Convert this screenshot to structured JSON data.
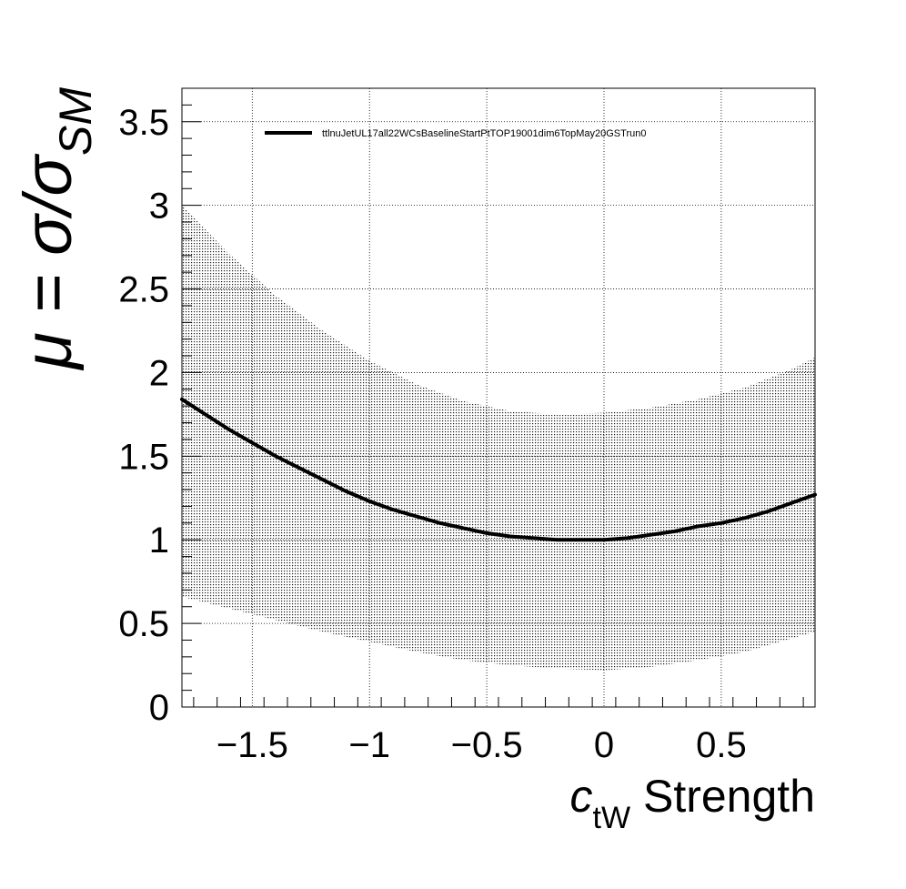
{
  "chart_data": {
    "type": "line",
    "title": "",
    "xlabel": {
      "symbol": "c",
      "subscript": "tW",
      "suffix": " Strength"
    },
    "ylabel": {
      "lhs": "μ = σ/σ",
      "subscript": "SM"
    },
    "xlim": [
      -1.8,
      0.9
    ],
    "ylim": [
      0,
      3.7
    ],
    "x_ticks": [
      -1.5,
      -1,
      -0.5,
      0,
      0.5
    ],
    "x_tick_labels": [
      "−1.5",
      "−1",
      "−0.5",
      "0",
      "0.5"
    ],
    "y_ticks": [
      0,
      0.5,
      1,
      1.5,
      2,
      2.5,
      3,
      3.5
    ],
    "y_tick_labels": [
      "0",
      "0.5",
      "1",
      "1.5",
      "2",
      "2.5",
      "3",
      "3.5"
    ],
    "grid": true,
    "legend_position": "top",
    "series": [
      {
        "name": "ttlnuJetUL17all22WCsBaselineStartPtTOP19001dim6TopMay20GSTrun0",
        "color": "#000000",
        "x": [
          -1.8,
          -1.7,
          -1.6,
          -1.5,
          -1.4,
          -1.3,
          -1.2,
          -1.1,
          -1.0,
          -0.9,
          -0.8,
          -0.7,
          -0.6,
          -0.5,
          -0.4,
          -0.3,
          -0.2,
          -0.1,
          0.0,
          0.1,
          0.2,
          0.3,
          0.4,
          0.5,
          0.6,
          0.7,
          0.8,
          0.9
        ],
        "y": [
          1.84,
          1.75,
          1.66,
          1.58,
          1.5,
          1.43,
          1.36,
          1.29,
          1.23,
          1.18,
          1.14,
          1.1,
          1.07,
          1.04,
          1.02,
          1.01,
          1.0,
          1.0,
          1.0,
          1.01,
          1.03,
          1.05,
          1.08,
          1.1,
          1.13,
          1.17,
          1.22,
          1.27
        ],
        "band": {
          "x": [
            -1.8,
            -1.6,
            -1.4,
            -1.2,
            -1.0,
            -0.8,
            -0.6,
            -0.4,
            -0.2,
            0.0,
            0.2,
            0.4,
            0.6,
            0.8,
            0.9
          ],
          "upper": [
            3.0,
            2.71,
            2.46,
            2.25,
            2.07,
            1.93,
            1.83,
            1.77,
            1.75,
            1.76,
            1.79,
            1.84,
            1.91,
            2.02,
            2.09
          ],
          "lower": [
            0.66,
            0.59,
            0.52,
            0.45,
            0.39,
            0.33,
            0.28,
            0.25,
            0.23,
            0.22,
            0.24,
            0.28,
            0.33,
            0.41,
            0.45
          ]
        }
      }
    ]
  }
}
